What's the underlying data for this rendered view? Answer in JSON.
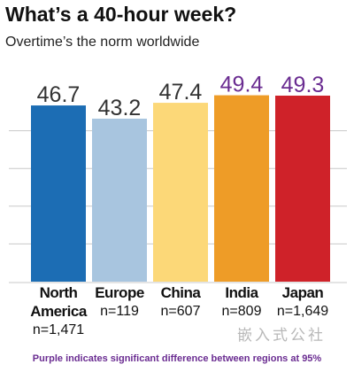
{
  "chart_data": {
    "type": "bar",
    "title": "What’s a 40-hour week?",
    "subtitle": "Overtime’s the norm worldwide",
    "categories": [
      "North America",
      "Europe",
      "China",
      "India",
      "Japan"
    ],
    "sample_sizes": [
      "n=1,471",
      "n=119",
      "n=607",
      "n=809",
      "n=1,649"
    ],
    "values": [
      46.7,
      43.2,
      47.4,
      49.4,
      49.3
    ],
    "colors": [
      "#1c6db4",
      "#a8c5df",
      "#fcd878",
      "#ee9c27",
      "#cf2229"
    ],
    "label_colors": [
      "#333333",
      "#333333",
      "#333333",
      "#6a2c91",
      "#6a2c91"
    ],
    "ylim": [
      0,
      50
    ],
    "yticks": [
      10,
      20,
      30,
      40
    ],
    "grid": true,
    "footnote": "Purple indicates significant difference between regions at 95%",
    "watermark": "嵌入式公社"
  }
}
